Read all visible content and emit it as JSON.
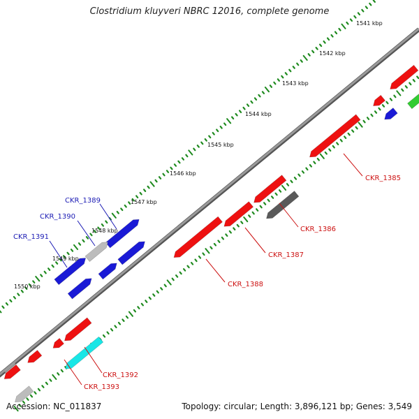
{
  "title": "Clostridium kluyveri NBRC 12016, complete genome",
  "footer": {
    "accession": "Accession: NC_011837",
    "stats": "Topology: circular; Length: 3,896,121 bp; Genes: 3,549"
  },
  "colors": {
    "backbone": "#8a8a8a",
    "tick": "#1e8a1e",
    "red": "#ee1111",
    "blue": "#1a1ad6",
    "gray_light": "#bcbcbc",
    "gray_dark": "#5a5a5a",
    "cyan": "#19e6e6",
    "green": "#33cc33",
    "label_blue": "#1a1ab4",
    "label_red": "#cc1111"
  },
  "tick_labels": [
    "1541 kbp",
    "1542 kbp",
    "1543 kbp",
    "1544 kbp",
    "1545 kbp",
    "1546 kbp",
    "1547 kbp",
    "1548 kbp",
    "1549 kbp",
    "1550 kbp"
  ],
  "gene_labels": [
    {
      "text": "CKR_1385",
      "strand": "minus"
    },
    {
      "text": "CKR_1386",
      "strand": "minus"
    },
    {
      "text": "CKR_1387",
      "strand": "minus"
    },
    {
      "text": "CKR_1388",
      "strand": "minus"
    },
    {
      "text": "CKR_1389",
      "strand": "plus"
    },
    {
      "text": "CKR_1390",
      "strand": "plus"
    },
    {
      "text": "CKR_1391",
      "strand": "plus"
    },
    {
      "text": "CKR_1392",
      "strand": "minus"
    },
    {
      "text": "CKR_1393",
      "strand": "minus"
    }
  ]
}
